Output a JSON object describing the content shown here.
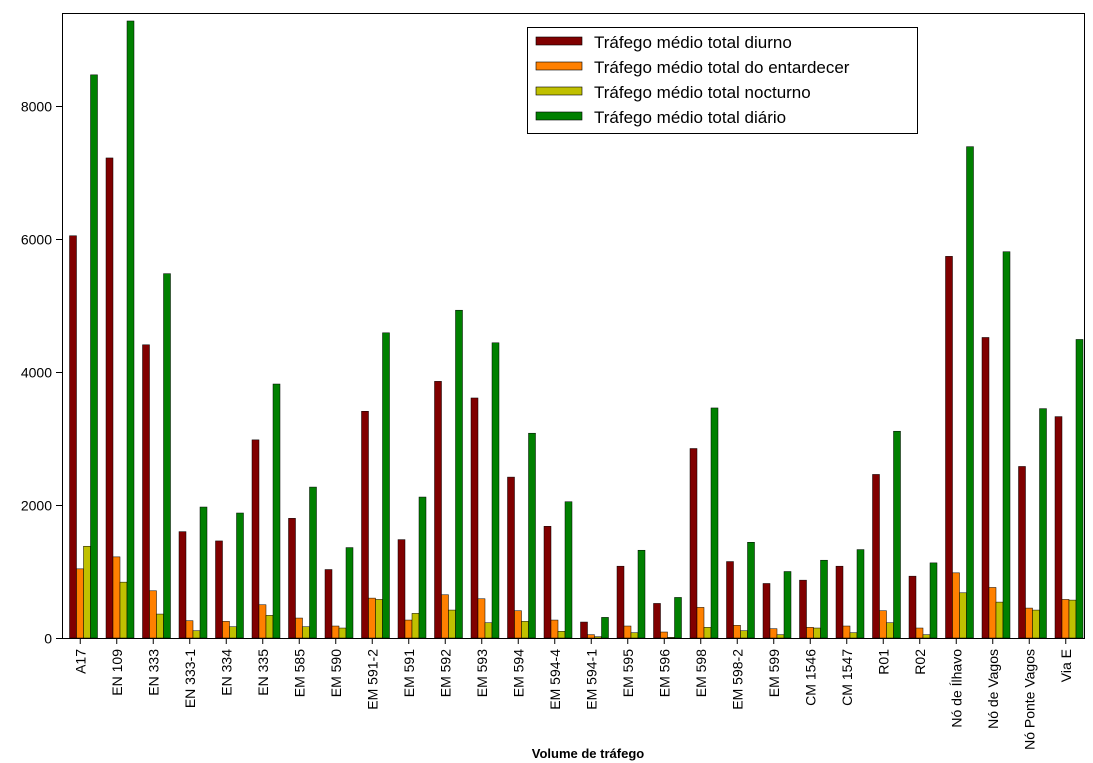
{
  "chart_data": {
    "type": "bar",
    "title": "",
    "xlabel": "Volume de tráfego",
    "ylabel": "",
    "ylim": [
      0,
      9400
    ],
    "yticks": [
      0,
      2000,
      4000,
      6000,
      8000
    ],
    "grid": false,
    "legend_position": "top-right",
    "categories": [
      "A17",
      "EN 109",
      "EN 333",
      "EN 333-1",
      "EN 334",
      "EN 335",
      "EM 585",
      "EM 590",
      "EM 591-2",
      "EM 591",
      "EM 592",
      "EM 593",
      "EM 594",
      "EM 594-4",
      "EM 594-1",
      "EM 595",
      "EM 596",
      "EM 598",
      "EM 598-2",
      "EM 599",
      "CM 1546",
      "CM 1547",
      "R01",
      "R02",
      "Nó de Ílhavo",
      "Nó de Vagos",
      "Nó Ponte Vagos",
      "Via E"
    ],
    "series": [
      {
        "name": "Tráfego médio total diurno",
        "color": "#800000",
        "values": [
          6050,
          7220,
          4410,
          1600,
          1460,
          2980,
          1800,
          1030,
          3410,
          1480,
          3860,
          3610,
          2420,
          1680,
          240,
          1080,
          520,
          2850,
          1150,
          820,
          870,
          1080,
          2460,
          930,
          5740,
          4520,
          2580,
          3330
        ]
      },
      {
        "name": "Tráfego médio total do entardecer",
        "color": "#ff8000",
        "values": [
          1040,
          1220,
          710,
          260,
          250,
          500,
          300,
          180,
          600,
          270,
          650,
          590,
          410,
          270,
          50,
          180,
          90,
          460,
          190,
          140,
          160,
          180,
          410,
          150,
          980,
          760,
          450,
          580
        ]
      },
      {
        "name": "Tráfego médio total nocturno",
        "color": "#c0c000",
        "values": [
          1380,
          840,
          360,
          110,
          170,
          340,
          170,
          150,
          580,
          370,
          420,
          230,
          250,
          100,
          20,
          80,
          10,
          160,
          110,
          50,
          150,
          80,
          230,
          50,
          680,
          540,
          420,
          570
        ]
      },
      {
        "name": "Tráfego médio total diário",
        "color": "#008000",
        "values": [
          8470,
          9280,
          5480,
          1970,
          1880,
          3820,
          2270,
          1360,
          4590,
          2120,
          4930,
          4440,
          3080,
          2050,
          310,
          1320,
          610,
          3460,
          1440,
          1000,
          1170,
          1330,
          3110,
          1130,
          7390,
          5810,
          3450,
          4490
        ]
      }
    ]
  }
}
